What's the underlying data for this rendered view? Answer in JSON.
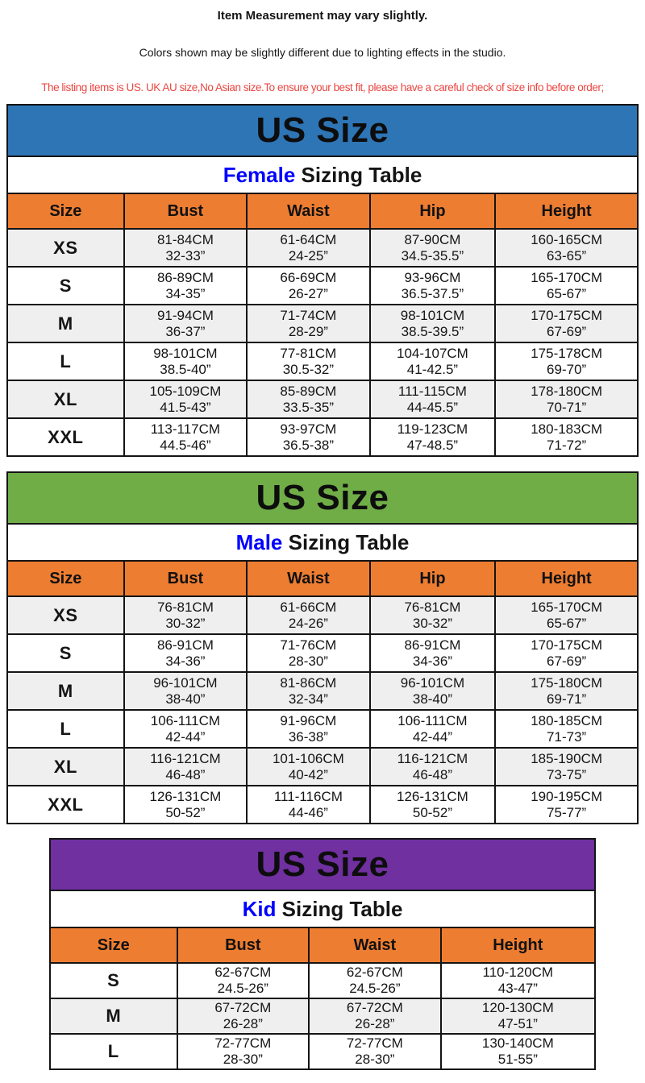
{
  "notices": {
    "measurement": "Item Measurement may vary slightly.",
    "lighting": "Colors shown may be slightly different due to lighting effects in the studio.",
    "sizing_warning": "The listing items is US. UK AU size,No Asian size.To ensure your best fit, please have a careful check of size info before order;"
  },
  "colors": {
    "female_banner": "#2E75B6",
    "male_banner": "#70AD47",
    "kid_banner": "#7030A0",
    "header_orange": "#ED7D31",
    "row_stripe": "#EFEFEF",
    "accent_blue": "#0000FF",
    "notice_red": "#EA4742"
  },
  "tables": [
    {
      "id": "female",
      "banner": "US Size",
      "subtitle_accent": "Female",
      "subtitle_rest": " Sizing Table",
      "columns": [
        "Size",
        "Bust",
        "Waist",
        "Hip",
        "Height"
      ],
      "rows": [
        {
          "size": "XS",
          "cells": [
            {
              "cm": "81-84CM",
              "in": "32-33”"
            },
            {
              "cm": "61-64CM",
              "in": "24-25”"
            },
            {
              "cm": "87-90CM",
              "in": "34.5-35.5”"
            },
            {
              "cm": "160-165CM",
              "in": "63-65”"
            }
          ]
        },
        {
          "size": "S",
          "cells": [
            {
              "cm": "86-89CM",
              "in": "34-35”"
            },
            {
              "cm": "66-69CM",
              "in": "26-27”"
            },
            {
              "cm": "93-96CM",
              "in": "36.5-37.5”"
            },
            {
              "cm": "165-170CM",
              "in": "65-67”"
            }
          ]
        },
        {
          "size": "M",
          "cells": [
            {
              "cm": "91-94CM",
              "in": "36-37”"
            },
            {
              "cm": "71-74CM",
              "in": "28-29”"
            },
            {
              "cm": "98-101CM",
              "in": "38.5-39.5”"
            },
            {
              "cm": "170-175CM",
              "in": "67-69”"
            }
          ]
        },
        {
          "size": "L",
          "cells": [
            {
              "cm": "98-101CM",
              "in": "38.5-40”"
            },
            {
              "cm": "77-81CM",
              "in": "30.5-32”"
            },
            {
              "cm": "104-107CM",
              "in": "41-42.5”"
            },
            {
              "cm": "175-178CM",
              "in": "69-70”"
            }
          ]
        },
        {
          "size": "XL",
          "cells": [
            {
              "cm": "105-109CM",
              "in": "41.5-43”"
            },
            {
              "cm": "85-89CM",
              "in": "33.5-35”"
            },
            {
              "cm": "111-115CM",
              "in": "44-45.5”"
            },
            {
              "cm": "178-180CM",
              "in": "70-71”"
            }
          ]
        },
        {
          "size": "XXL",
          "cells": [
            {
              "cm": "113-117CM",
              "in": "44.5-46”"
            },
            {
              "cm": "93-97CM",
              "in": "36.5-38”"
            },
            {
              "cm": "119-123CM",
              "in": "47-48.5”"
            },
            {
              "cm": "180-183CM",
              "in": "71-72”"
            }
          ]
        }
      ]
    },
    {
      "id": "male",
      "banner": "US Size",
      "subtitle_accent": "Male",
      "subtitle_rest": " Sizing Table",
      "columns": [
        "Size",
        "Bust",
        "Waist",
        "Hip",
        "Height"
      ],
      "rows": [
        {
          "size": "XS",
          "cells": [
            {
              "cm": "76-81CM",
              "in": "30-32”"
            },
            {
              "cm": "61-66CM",
              "in": "24-26”"
            },
            {
              "cm": "76-81CM",
              "in": "30-32”"
            },
            {
              "cm": "165-170CM",
              "in": "65-67”"
            }
          ]
        },
        {
          "size": "S",
          "cells": [
            {
              "cm": "86-91CM",
              "in": "34-36”"
            },
            {
              "cm": "71-76CM",
              "in": "28-30”"
            },
            {
              "cm": "86-91CM",
              "in": "34-36”"
            },
            {
              "cm": "170-175CM",
              "in": "67-69”"
            }
          ]
        },
        {
          "size": "M",
          "cells": [
            {
              "cm": "96-101CM",
              "in": "38-40”"
            },
            {
              "cm": "81-86CM",
              "in": "32-34”"
            },
            {
              "cm": "96-101CM",
              "in": "38-40”"
            },
            {
              "cm": "175-180CM",
              "in": "69-71”"
            }
          ]
        },
        {
          "size": "L",
          "cells": [
            {
              "cm": "106-111CM",
              "in": "42-44”"
            },
            {
              "cm": "91-96CM",
              "in": "36-38”"
            },
            {
              "cm": "106-111CM",
              "in": "42-44”"
            },
            {
              "cm": "180-185CM",
              "in": "71-73”"
            }
          ]
        },
        {
          "size": "XL",
          "cells": [
            {
              "cm": "116-121CM",
              "in": "46-48”"
            },
            {
              "cm": "101-106CM",
              "in": "40-42”"
            },
            {
              "cm": "116-121CM",
              "in": "46-48”"
            },
            {
              "cm": "185-190CM",
              "in": "73-75”"
            }
          ]
        },
        {
          "size": "XXL",
          "cells": [
            {
              "cm": "126-131CM",
              "in": "50-52”"
            },
            {
              "cm": "111-116CM",
              "in": "44-46”"
            },
            {
              "cm": "126-131CM",
              "in": "50-52”"
            },
            {
              "cm": "190-195CM",
              "in": "75-77”"
            }
          ]
        }
      ]
    },
    {
      "id": "kid",
      "banner": "US Size",
      "subtitle_accent": "Kid",
      "subtitle_rest": " Sizing Table",
      "columns": [
        "Size",
        "Bust",
        "Waist",
        "Height"
      ],
      "rows": [
        {
          "size": "S",
          "cells": [
            {
              "cm": "62-67CM",
              "in": "24.5-26”"
            },
            {
              "cm": "62-67CM",
              "in": "24.5-26”"
            },
            {
              "cm": "110-120CM",
              "in": "43-47”"
            }
          ]
        },
        {
          "size": "M",
          "cells": [
            {
              "cm": "67-72CM",
              "in": "26-28”"
            },
            {
              "cm": "67-72CM",
              "in": "26-28”"
            },
            {
              "cm": "120-130CM",
              "in": "47-51”"
            }
          ]
        },
        {
          "size": "L",
          "cells": [
            {
              "cm": "72-77CM",
              "in": "28-30”"
            },
            {
              "cm": "72-77CM",
              "in": "28-30”"
            },
            {
              "cm": "130-140CM",
              "in": "51-55”"
            }
          ]
        }
      ]
    }
  ]
}
